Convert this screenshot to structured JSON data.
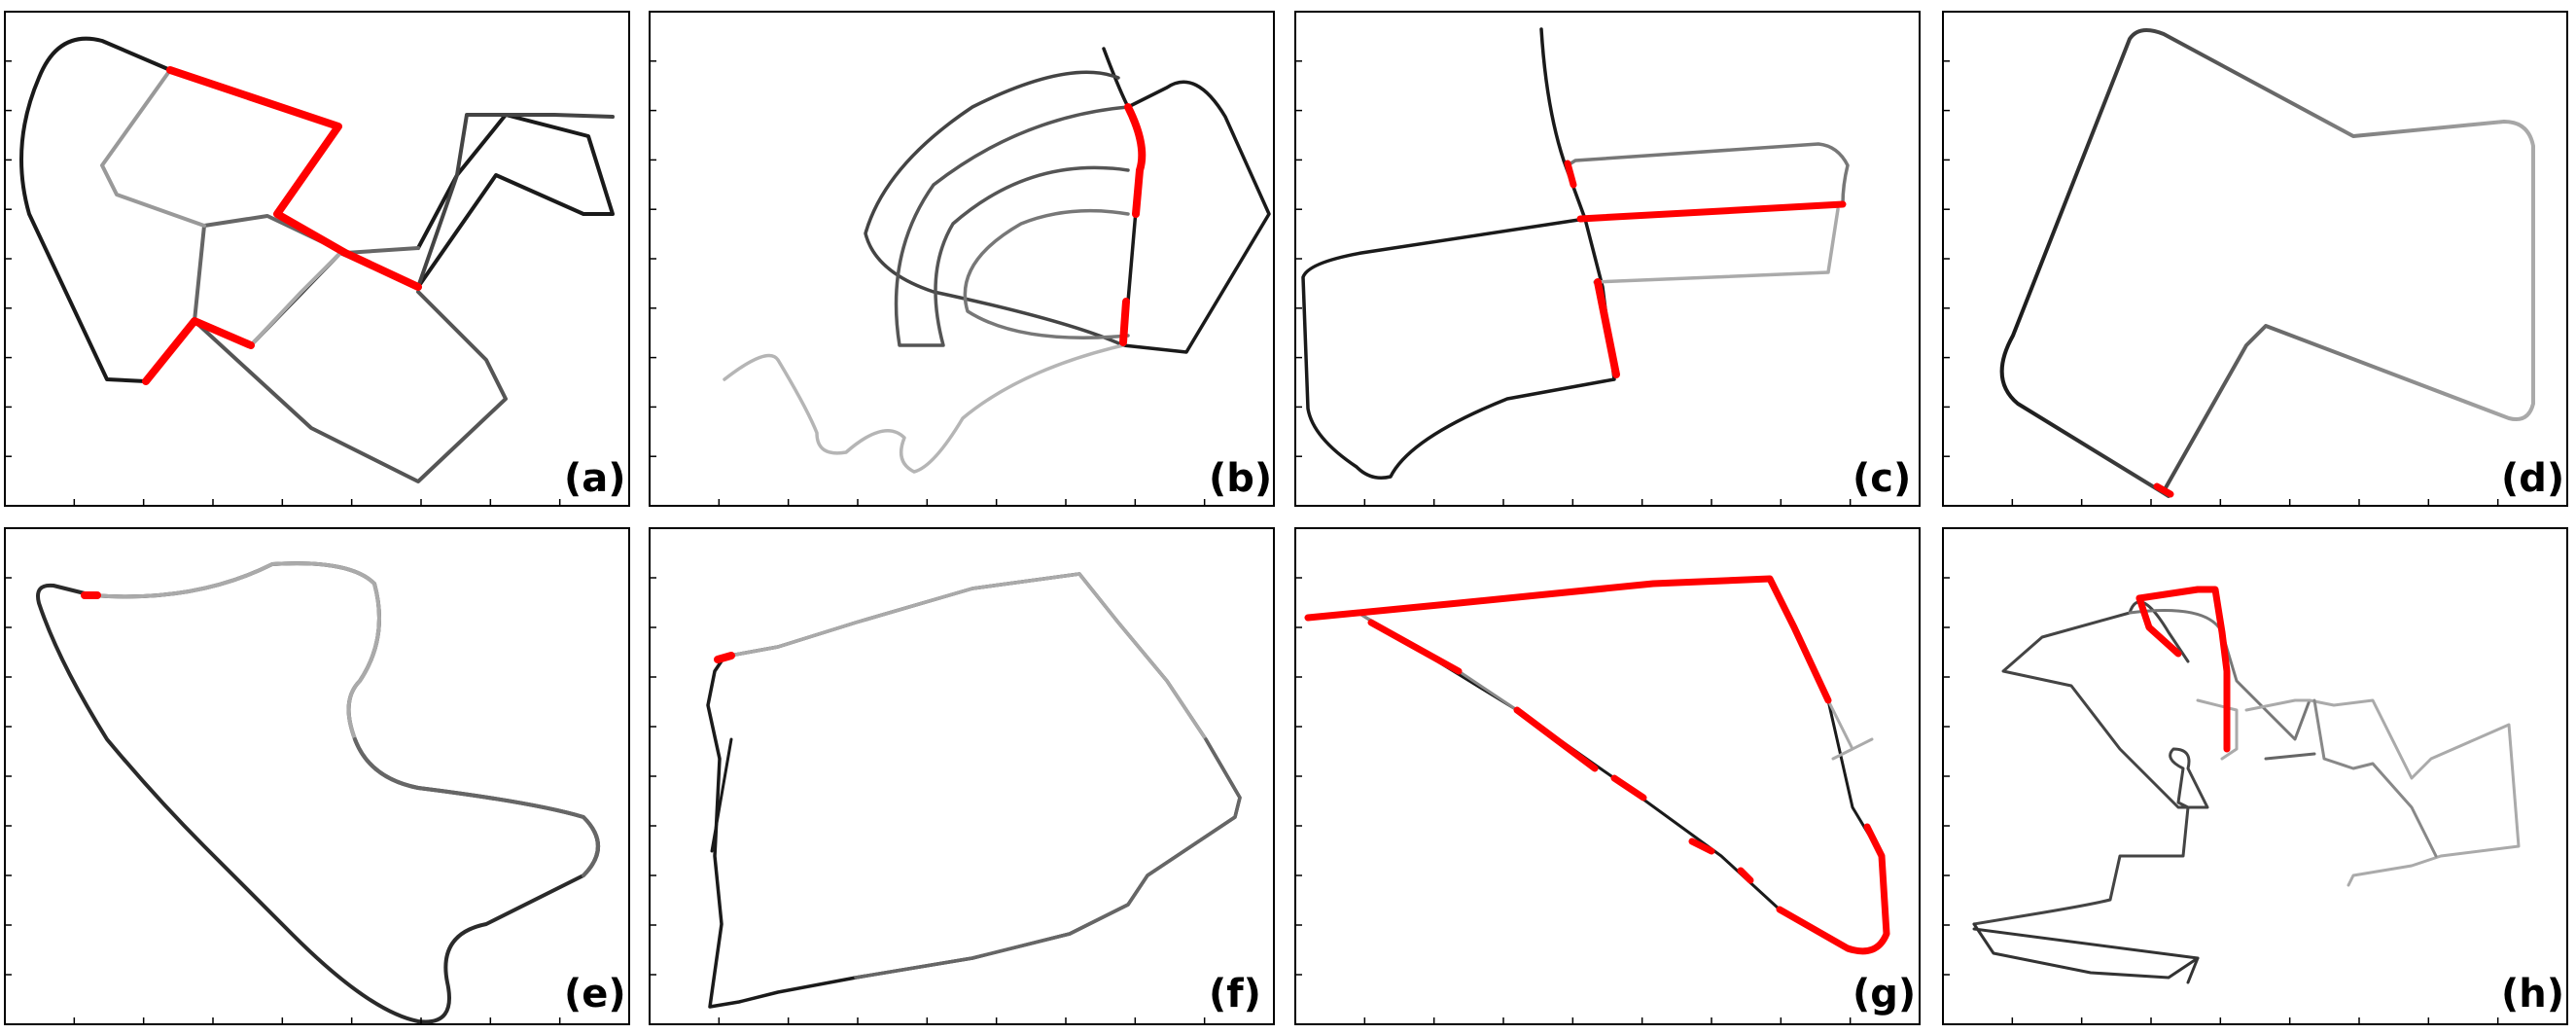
{
  "figure": {
    "panels": [
      {
        "id": "a",
        "label": "(a)"
      },
      {
        "id": "b",
        "label": "(b)"
      },
      {
        "id": "c",
        "label": "(c)"
      },
      {
        "id": "d",
        "label": "(d)"
      },
      {
        "id": "e",
        "label": "(e)"
      },
      {
        "id": "f",
        "label": "(f)"
      },
      {
        "id": "g",
        "label": "(g)"
      },
      {
        "id": "h",
        "label": "(h)"
      }
    ],
    "colors": {
      "trajectory_dark": "#1a1a1a",
      "trajectory_mid": "#5a5a5a",
      "trajectory_light": "#aaaaaa",
      "loop_closure_highlight": "#ff0000",
      "frame": "#000000"
    }
  }
}
